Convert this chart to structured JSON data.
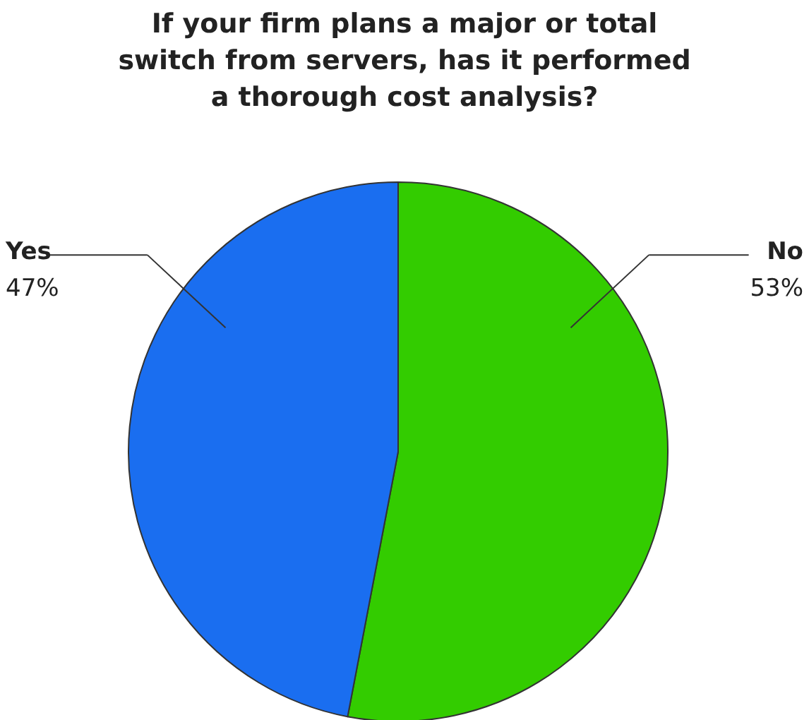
{
  "chart_data": {
    "type": "pie",
    "title": "If your firm plans a major or total switch from servers, has it performed a thorough cost analysis?",
    "categories": [
      "No",
      "Yes"
    ],
    "values": [
      53,
      47
    ],
    "colors": [
      "#33cc00",
      "#1a6ef0"
    ],
    "value_labels": [
      "53%",
      "47%"
    ]
  }
}
